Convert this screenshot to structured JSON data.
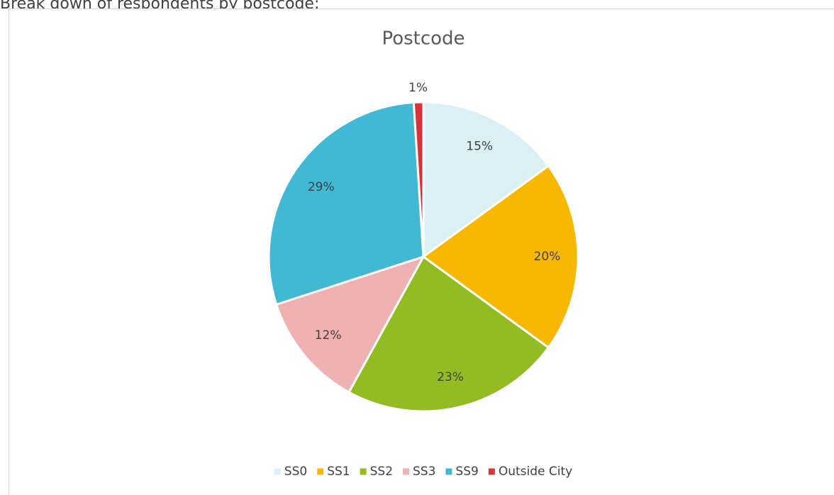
{
  "caption": "Break down of respondents by postcode:",
  "chart_data": {
    "type": "pie",
    "title": "Postcode",
    "categories": [
      "SS0",
      "SS1",
      "SS2",
      "SS3",
      "SS9",
      "Outside City"
    ],
    "values": [
      15,
      20,
      23,
      12,
      29,
      1
    ],
    "value_labels": [
      "15%",
      "20%",
      "23%",
      "12%",
      "29%",
      "1%"
    ],
    "colors": [
      "#daf0f5",
      "#f9b800",
      "#92bc22",
      "#efb1b2",
      "#41b8d4",
      "#d9343a"
    ],
    "legend": "bottom"
  }
}
